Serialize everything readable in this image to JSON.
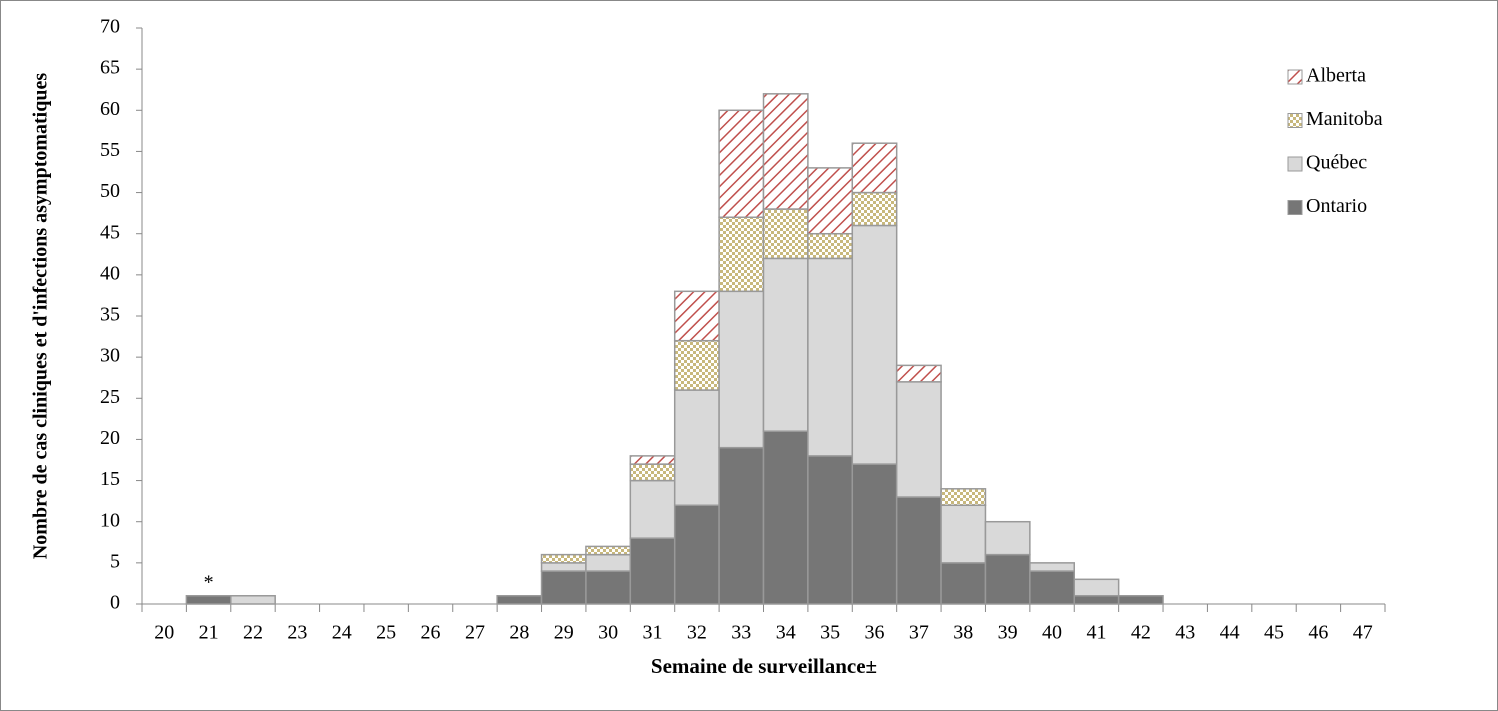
{
  "chart_data": {
    "type": "stacked_bar",
    "y_label": "Nombre de cas cliniques et d'infections asymptomatiques",
    "x_label": "Semaine de surveillance±",
    "categories": [
      "20",
      "21",
      "22",
      "23",
      "24",
      "25",
      "26",
      "27",
      "28",
      "29",
      "30",
      "31",
      "32",
      "33",
      "34",
      "35",
      "36",
      "37",
      "38",
      "39",
      "40",
      "41",
      "42",
      "43",
      "44",
      "45",
      "46",
      "47"
    ],
    "series": [
      {
        "name": "Ontario",
        "color": "#767676",
        "pattern": "solid",
        "values": [
          0,
          1,
          0,
          0,
          0,
          0,
          0,
          0,
          1,
          4,
          4,
          8,
          12,
          19,
          21,
          18,
          17,
          13,
          5,
          6,
          4,
          1,
          1,
          0,
          0,
          0,
          0,
          0
        ]
      },
      {
        "name": "Québec",
        "color": "#d9d9d9",
        "pattern": "solid",
        "values": [
          0,
          0,
          1,
          0,
          0,
          0,
          0,
          0,
          0,
          1,
          2,
          7,
          14,
          19,
          21,
          24,
          29,
          14,
          7,
          4,
          1,
          2,
          0,
          0,
          0,
          0,
          0,
          0
        ]
      },
      {
        "name": "Manitoba",
        "color": "#c8b87c",
        "pattern": "check",
        "values": [
          0,
          0,
          0,
          0,
          0,
          0,
          0,
          0,
          0,
          1,
          1,
          2,
          6,
          9,
          6,
          3,
          4,
          0,
          2,
          0,
          0,
          0,
          0,
          0,
          0,
          0,
          0,
          0
        ]
      },
      {
        "name": "Alberta",
        "color": "#c0504d",
        "pattern": "hatch",
        "values": [
          0,
          0,
          0,
          0,
          0,
          0,
          0,
          0,
          0,
          0,
          0,
          1,
          6,
          13,
          14,
          8,
          6,
          2,
          0,
          0,
          0,
          0,
          0,
          0,
          0,
          0,
          0,
          0
        ]
      }
    ],
    "annotation": {
      "text": "*",
      "category": "21"
    },
    "ylim": [
      0,
      70
    ],
    "yticks": [
      0,
      5,
      10,
      15,
      20,
      25,
      30,
      35,
      40,
      45,
      50,
      55,
      60,
      65,
      70
    ],
    "grid": false,
    "legend": "top-right"
  }
}
